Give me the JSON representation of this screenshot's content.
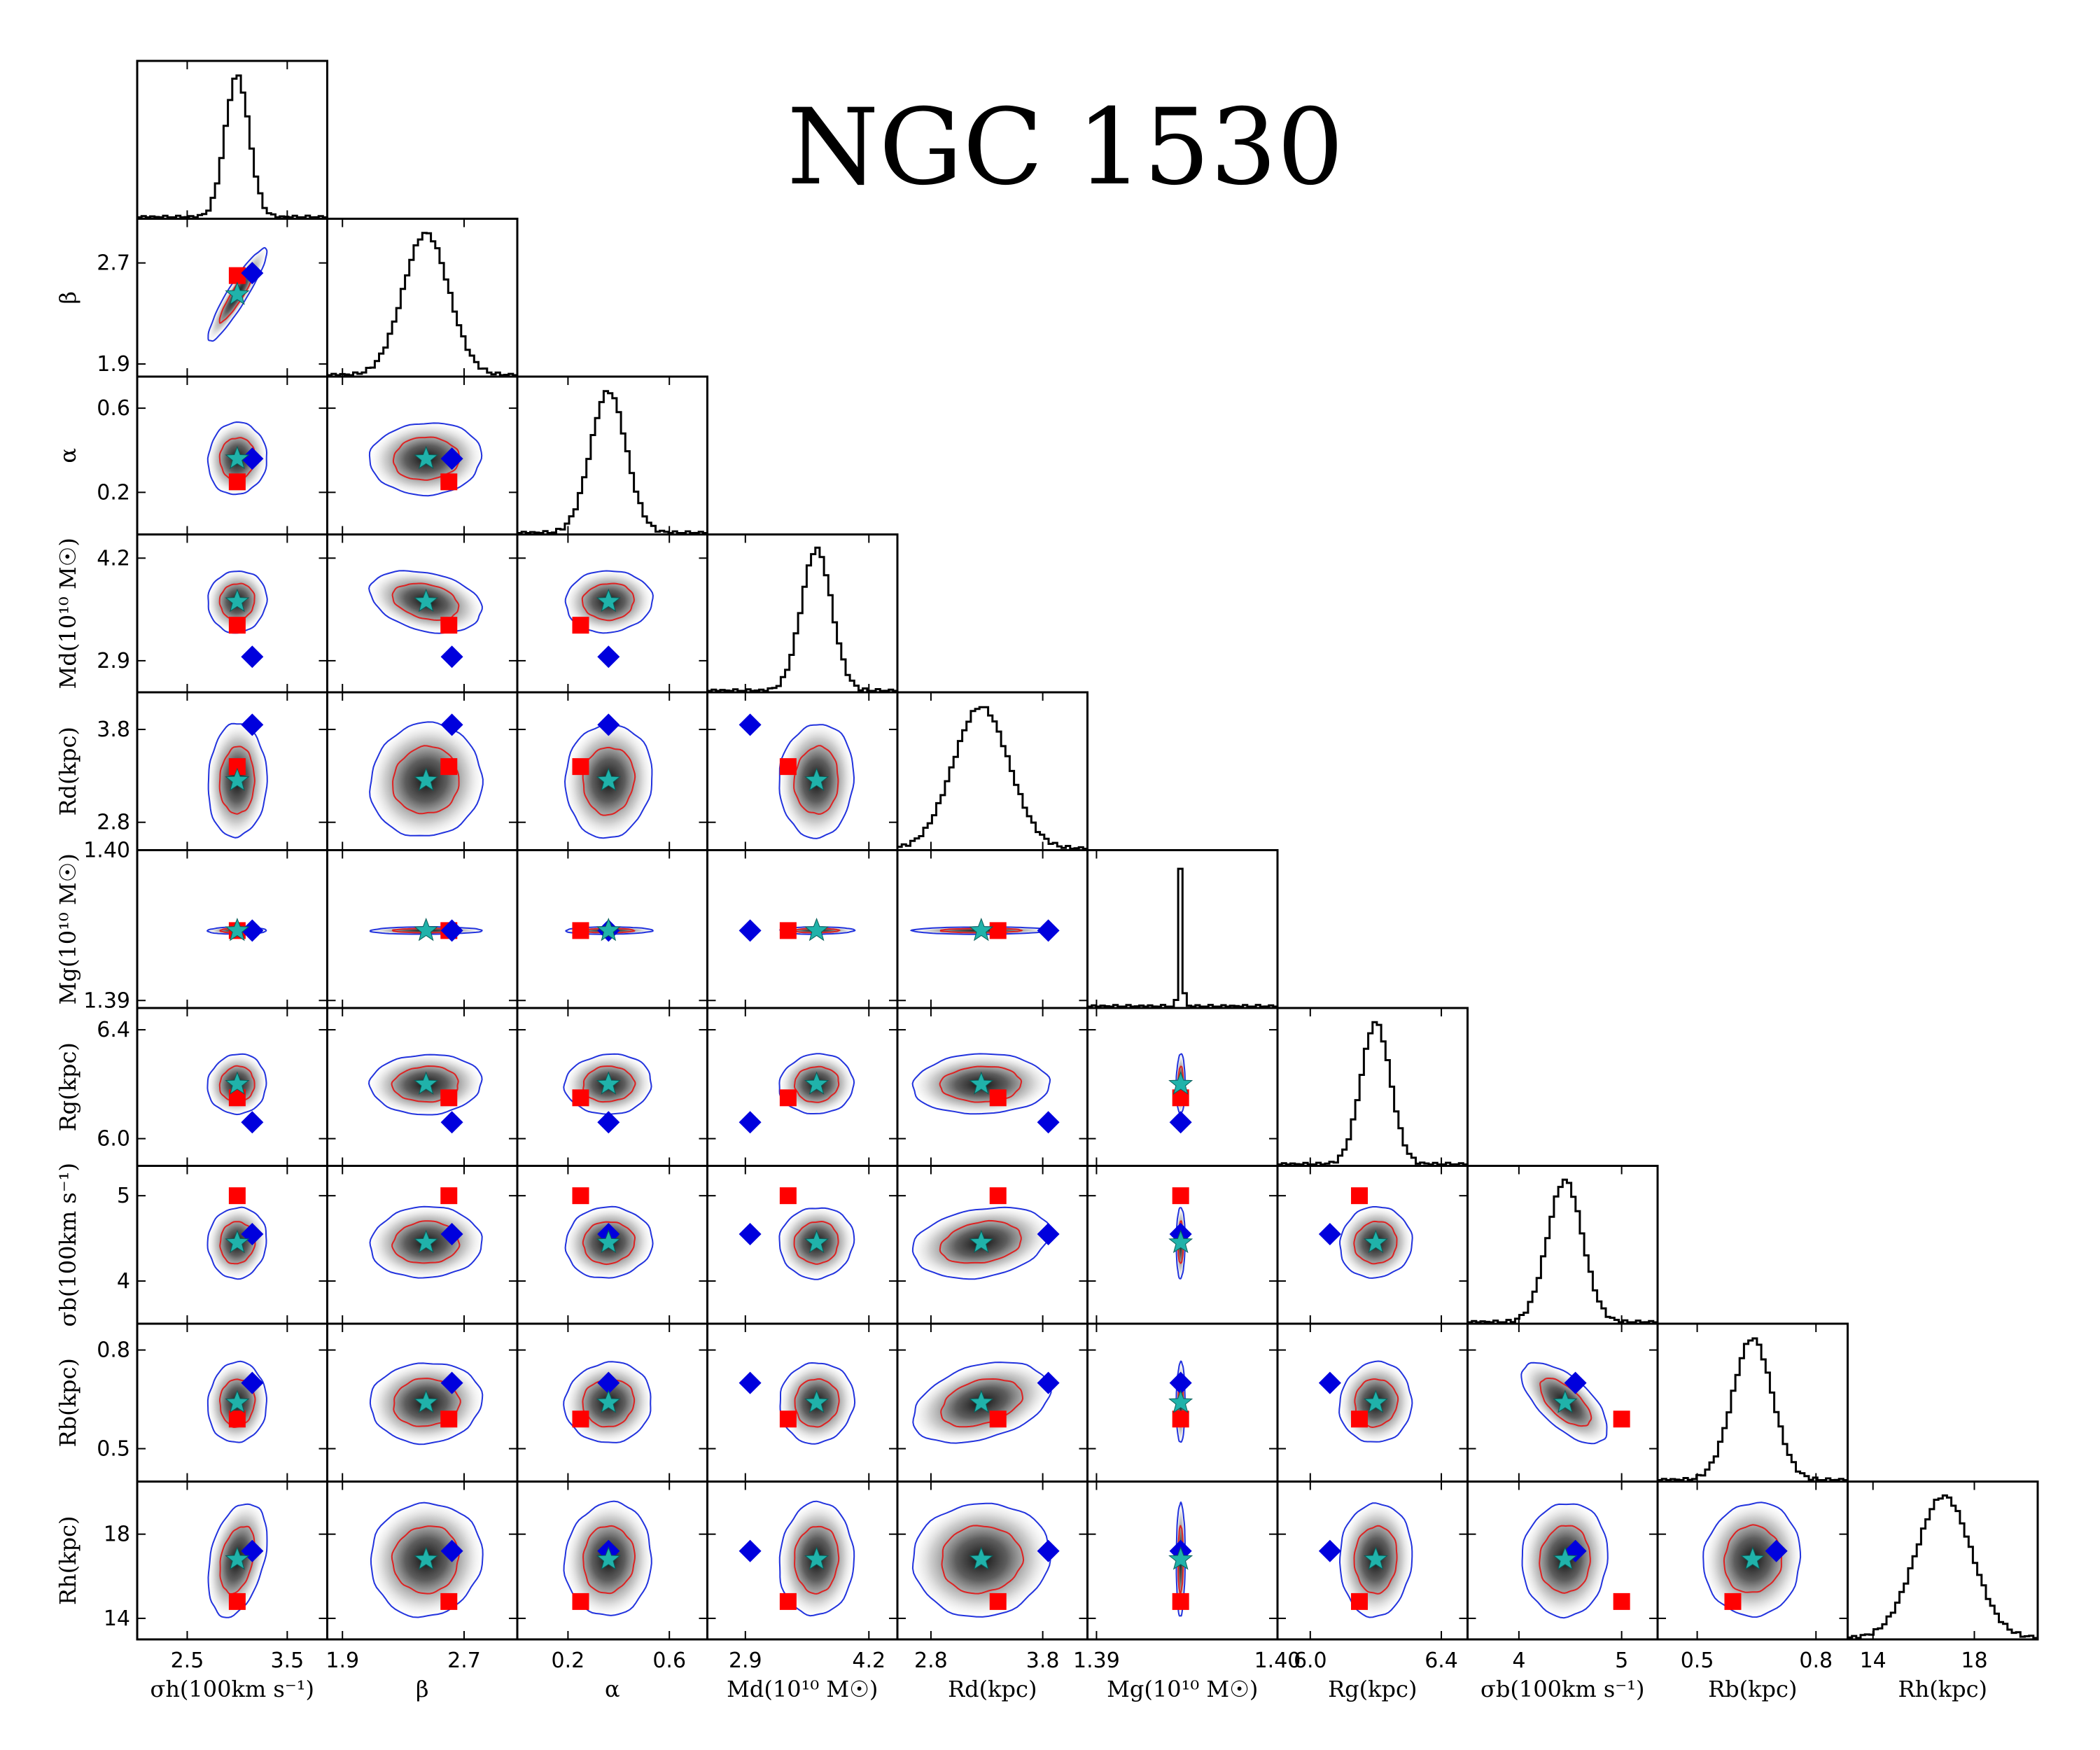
{
  "title": "NGC 1530",
  "chart_data": {
    "type": "corner",
    "title": "NGC 1530",
    "parameters": [
      {
        "id": "sigma_h",
        "label": "σh(100km s⁻¹)",
        "range": [
          2.0,
          3.9
        ],
        "ticks": [
          2.5,
          3.5
        ],
        "tick_labels": [
          "2.5",
          "3.5"
        ],
        "mode": 3.0,
        "sd": 0.12,
        "star": 3.0,
        "square": 3.0,
        "diamond": 3.15
      },
      {
        "id": "beta",
        "label": "β",
        "range": [
          1.8,
          3.05
        ],
        "ticks": [
          1.9,
          2.7
        ],
        "tick_labels": [
          "1.9",
          "2.7"
        ],
        "mode": 2.45,
        "sd": 0.15,
        "star": 2.45,
        "square": 2.6,
        "diamond": 2.62
      },
      {
        "id": "alpha",
        "label": "α",
        "range": [
          0.0,
          0.75
        ],
        "ticks": [
          0.2,
          0.6
        ],
        "tick_labels": [
          "0.2",
          "0.6"
        ],
        "mode": 0.36,
        "sd": 0.07,
        "star": 0.36,
        "square": 0.25,
        "diamond": 0.36
      },
      {
        "id": "M_d",
        "label": "Md(10¹⁰ M☉)",
        "range": [
          2.5,
          4.5
        ],
        "ticks": [
          2.9,
          4.2
        ],
        "tick_labels": [
          "2.9",
          "4.2"
        ],
        "mode": 3.65,
        "sd": 0.16,
        "star": 3.65,
        "square": 3.35,
        "diamond": 2.95
      },
      {
        "id": "R_d",
        "label": "Rd(kpc)",
        "range": [
          2.5,
          4.2
        ],
        "ticks": [
          2.8,
          3.8
        ],
        "tick_labels": [
          "2.8",
          "3.8"
        ],
        "mode": 3.25,
        "sd": 0.25,
        "star": 3.25,
        "square": 3.4,
        "diamond": 3.85
      },
      {
        "id": "M_g",
        "label": "Mg(10¹⁰ M☉)",
        "range": [
          1.3895,
          1.4
        ],
        "ticks": [
          1.39,
          1.4
        ],
        "tick_labels": [
          "1.39",
          "1.40"
        ],
        "mode": 1.39465,
        "sd": 0.0001,
        "star": 1.39465,
        "square": 1.39465,
        "diamond": 1.39465
      },
      {
        "id": "R_g",
        "label": "Rg(kpc)",
        "range": [
          5.9,
          6.48
        ],
        "ticks": [
          6.0,
          6.4
        ],
        "tick_labels": [
          "6.0",
          "6.4"
        ],
        "mode": 6.2,
        "sd": 0.045,
        "star": 6.2,
        "square": 6.15,
        "diamond": 6.06
      },
      {
        "id": "sigma_b",
        "label": "σb(100km s⁻¹)",
        "range": [
          3.5,
          5.35
        ],
        "ticks": [
          4,
          5
        ],
        "tick_labels": [
          "4",
          "5"
        ],
        "mode": 4.45,
        "sd": 0.17,
        "star": 4.45,
        "square": 5.0,
        "diamond": 4.55
      },
      {
        "id": "R_b",
        "label": "Rb(kpc)",
        "range": [
          0.4,
          0.88
        ],
        "ticks": [
          0.5,
          0.8
        ],
        "tick_labels": [
          "0.5",
          "0.8"
        ],
        "mode": 0.64,
        "sd": 0.05,
        "star": 0.64,
        "square": 0.59,
        "diamond": 0.7
      },
      {
        "id": "R_h",
        "label": "Rh(kpc)",
        "range": [
          13.0,
          20.5
        ],
        "ticks": [
          14,
          18
        ],
        "tick_labels": [
          "14",
          "18"
        ],
        "mode": 16.8,
        "sd": 1.1,
        "star": 16.8,
        "square": 14.8,
        "diamond": 17.2
      }
    ],
    "correlations": {
      "0-1": 0.92,
      "7-8": -0.65,
      "4-8": 0.35,
      "1-3": -0.3,
      "0-9": 0.35,
      "4-7": 0.25
    },
    "markers": {
      "star": "#20b2aa",
      "square": "#ff0000",
      "diamond": "#0000dd"
    },
    "contour_colors": {
      "inner": "#dd2222",
      "outer": "#2233dd"
    }
  }
}
